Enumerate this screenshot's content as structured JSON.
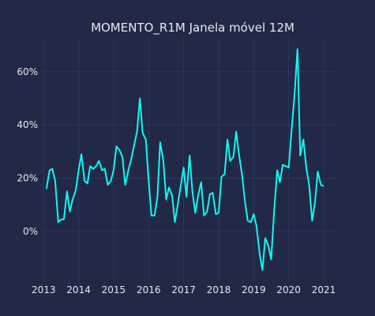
{
  "chart_data": {
    "type": "line",
    "title": "MOMENTO_R1M Janela móvel 12M",
    "xlabel": "",
    "ylabel": "",
    "x_range": [
      2012.95,
      2021.45
    ],
    "ylim": [
      -0.19,
      0.73
    ],
    "x_ticks": [
      {
        "value": 2013,
        "label": "2013"
      },
      {
        "value": 2014,
        "label": "2014"
      },
      {
        "value": 2015,
        "label": "2015"
      },
      {
        "value": 2016,
        "label": "2016"
      },
      {
        "value": 2017,
        "label": "2017"
      },
      {
        "value": 2018,
        "label": "2018"
      },
      {
        "value": 2019,
        "label": "2019"
      },
      {
        "value": 2020,
        "label": "2020"
      },
      {
        "value": 2021,
        "label": "2021"
      }
    ],
    "y_ticks": [
      {
        "value": 0.0,
        "label": "0%"
      },
      {
        "value": 0.2,
        "label": "20%"
      },
      {
        "value": 0.4,
        "label": "40%"
      },
      {
        "value": 0.6,
        "label": "60%"
      }
    ],
    "grid": true,
    "series_color": "#12f7f2",
    "series": [
      {
        "name": "",
        "points": [
          [
            2013.08,
            0.16
          ],
          [
            2013.17,
            0.23
          ],
          [
            2013.25,
            0.235
          ],
          [
            2013.33,
            0.19
          ],
          [
            2013.42,
            0.035
          ],
          [
            2013.5,
            0.045
          ],
          [
            2013.58,
            0.045
          ],
          [
            2013.67,
            0.15
          ],
          [
            2013.75,
            0.075
          ],
          [
            2013.83,
            0.12
          ],
          [
            2013.92,
            0.155
          ],
          [
            2014.0,
            0.23
          ],
          [
            2014.08,
            0.29
          ],
          [
            2014.17,
            0.19
          ],
          [
            2014.25,
            0.18
          ],
          [
            2014.33,
            0.245
          ],
          [
            2014.42,
            0.235
          ],
          [
            2014.5,
            0.245
          ],
          [
            2014.58,
            0.265
          ],
          [
            2014.67,
            0.23
          ],
          [
            2014.75,
            0.235
          ],
          [
            2014.83,
            0.175
          ],
          [
            2014.92,
            0.19
          ],
          [
            2015.0,
            0.23
          ],
          [
            2015.08,
            0.32
          ],
          [
            2015.17,
            0.305
          ],
          [
            2015.25,
            0.28
          ],
          [
            2015.33,
            0.175
          ],
          [
            2015.42,
            0.23
          ],
          [
            2015.5,
            0.27
          ],
          [
            2015.58,
            0.32
          ],
          [
            2015.67,
            0.375
          ],
          [
            2015.75,
            0.5
          ],
          [
            2015.83,
            0.37
          ],
          [
            2015.92,
            0.345
          ],
          [
            2016.0,
            0.19
          ],
          [
            2016.08,
            0.06
          ],
          [
            2016.17,
            0.06
          ],
          [
            2016.25,
            0.13
          ],
          [
            2016.33,
            0.335
          ],
          [
            2016.42,
            0.265
          ],
          [
            2016.5,
            0.12
          ],
          [
            2016.58,
            0.165
          ],
          [
            2016.67,
            0.135
          ],
          [
            2016.75,
            0.035
          ],
          [
            2016.83,
            0.1
          ],
          [
            2016.92,
            0.175
          ],
          [
            2017.0,
            0.24
          ],
          [
            2017.08,
            0.13
          ],
          [
            2017.17,
            0.285
          ],
          [
            2017.25,
            0.15
          ],
          [
            2017.33,
            0.07
          ],
          [
            2017.42,
            0.14
          ],
          [
            2017.5,
            0.185
          ],
          [
            2017.58,
            0.06
          ],
          [
            2017.67,
            0.075
          ],
          [
            2017.75,
            0.14
          ],
          [
            2017.83,
            0.145
          ],
          [
            2017.92,
            0.065
          ],
          [
            2018.0,
            0.07
          ],
          [
            2018.08,
            0.205
          ],
          [
            2018.17,
            0.215
          ],
          [
            2018.25,
            0.345
          ],
          [
            2018.33,
            0.265
          ],
          [
            2018.42,
            0.28
          ],
          [
            2018.5,
            0.375
          ],
          [
            2018.58,
            0.29
          ],
          [
            2018.67,
            0.21
          ],
          [
            2018.75,
            0.115
          ],
          [
            2018.83,
            0.04
          ],
          [
            2018.92,
            0.035
          ],
          [
            2019.0,
            0.065
          ],
          [
            2019.08,
            0.02
          ],
          [
            2019.17,
            -0.085
          ],
          [
            2019.25,
            -0.145
          ],
          [
            2019.33,
            -0.025
          ],
          [
            2019.42,
            -0.055
          ],
          [
            2019.5,
            -0.105
          ],
          [
            2019.58,
            0.07
          ],
          [
            2019.67,
            0.23
          ],
          [
            2019.75,
            0.185
          ],
          [
            2019.83,
            0.25
          ],
          [
            2019.92,
            0.245
          ],
          [
            2020.0,
            0.24
          ],
          [
            2020.08,
            0.375
          ],
          [
            2020.17,
            0.52
          ],
          [
            2020.25,
            0.685
          ],
          [
            2020.33,
            0.285
          ],
          [
            2020.42,
            0.345
          ],
          [
            2020.5,
            0.24
          ],
          [
            2020.58,
            0.18
          ],
          [
            2020.67,
            0.04
          ],
          [
            2020.75,
            0.11
          ],
          [
            2020.83,
            0.225
          ],
          [
            2020.92,
            0.175
          ],
          [
            2021.0,
            0.17
          ]
        ]
      }
    ]
  }
}
